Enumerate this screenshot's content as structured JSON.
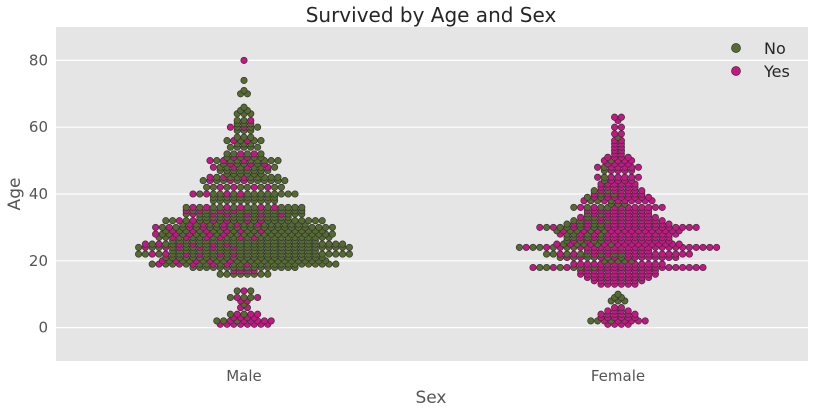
{
  "chart_data": {
    "type": "scatter",
    "subtype": "swarm",
    "title": "Survived by Age and Sex",
    "xlabel": "Sex",
    "ylabel": "Age",
    "categories": [
      "Male",
      "Female"
    ],
    "ylim": [
      -10,
      90
    ],
    "yticks": [
      0,
      20,
      40,
      60,
      80
    ],
    "grid": true,
    "legend_placement": "top-right",
    "colors": {
      "No": "#556b2f",
      "Yes": "#c71585",
      "background": "#e5e5e5",
      "grid": "#ffffff"
    },
    "series": [
      {
        "name": "No",
        "color": "#556b2f",
        "bins": {
          "Male": [
            [
              2,
              3
            ],
            [
              4,
              2
            ],
            [
              7,
              1
            ],
            [
              9,
              3
            ],
            [
              11,
              2
            ],
            [
              16,
              8
            ],
            [
              18,
              16
            ],
            [
              19,
              22
            ],
            [
              20,
              20
            ],
            [
              21,
              24
            ],
            [
              22,
              26
            ],
            [
              23,
              22
            ],
            [
              24,
              26
            ],
            [
              25,
              24
            ],
            [
              26,
              22
            ],
            [
              27,
              20
            ],
            [
              28,
              22
            ],
            [
              29,
              18
            ],
            [
              30,
              22
            ],
            [
              31,
              14
            ],
            [
              32,
              18
            ],
            [
              33,
              14
            ],
            [
              34,
              12
            ],
            [
              35,
              14
            ],
            [
              36,
              12
            ],
            [
              38,
              10
            ],
            [
              39,
              10
            ],
            [
              40,
              12
            ],
            [
              42,
              8
            ],
            [
              44,
              10
            ],
            [
              45,
              8
            ],
            [
              46,
              6
            ],
            [
              47,
              8
            ],
            [
              48,
              6
            ],
            [
              49,
              4
            ],
            [
              50,
              8
            ],
            [
              51,
              4
            ],
            [
              52,
              4
            ],
            [
              54,
              5
            ],
            [
              55,
              3
            ],
            [
              56,
              4
            ],
            [
              57,
              3
            ],
            [
              59,
              3
            ],
            [
              60,
              3
            ],
            [
              61,
              3
            ],
            [
              62,
              2
            ],
            [
              64,
              3
            ],
            [
              65,
              2
            ],
            [
              66,
              1
            ],
            [
              70,
              2
            ],
            [
              71,
              1
            ],
            [
              74,
              1
            ]
          ],
          "Female": [
            [
              2,
              3
            ],
            [
              8,
              3
            ],
            [
              9,
              2
            ],
            [
              10,
              1
            ],
            [
              18,
              6
            ],
            [
              20,
              5
            ],
            [
              21,
              6
            ],
            [
              22,
              8
            ],
            [
              24,
              6
            ],
            [
              25,
              5
            ],
            [
              26,
              4
            ],
            [
              27,
              4
            ],
            [
              28,
              4
            ],
            [
              29,
              5
            ],
            [
              30,
              6
            ],
            [
              31,
              4
            ],
            [
              32,
              4
            ],
            [
              33,
              2
            ],
            [
              34,
              2
            ],
            [
              36,
              4
            ],
            [
              37,
              3
            ],
            [
              38,
              3
            ],
            [
              39,
              2
            ],
            [
              40,
              2
            ],
            [
              41,
              2
            ],
            [
              44,
              1
            ],
            [
              45,
              1
            ],
            [
              47,
              1
            ],
            [
              48,
              1
            ],
            [
              50,
              1
            ],
            [
              57,
              1
            ]
          ]
        }
      },
      {
        "name": "Yes",
        "color": "#c71585",
        "bins": {
          "Male": [
            [
              1,
              8
            ],
            [
              2,
              6
            ],
            [
              3,
              4
            ],
            [
              4,
              3
            ],
            [
              6,
              2
            ],
            [
              8,
              2
            ],
            [
              9,
              2
            ],
            [
              11,
              1
            ],
            [
              17,
              4
            ],
            [
              19,
              6
            ],
            [
              20,
              5
            ],
            [
              22,
              6
            ],
            [
              24,
              6
            ],
            [
              25,
              6
            ],
            [
              27,
              6
            ],
            [
              28,
              5
            ],
            [
              29,
              6
            ],
            [
              30,
              5
            ],
            [
              31,
              5
            ],
            [
              32,
              6
            ],
            [
              34,
              6
            ],
            [
              35,
              4
            ],
            [
              36,
              6
            ],
            [
              40,
              4
            ],
            [
              42,
              4
            ],
            [
              44,
              3
            ],
            [
              45,
              3
            ],
            [
              48,
              4
            ],
            [
              49,
              3
            ],
            [
              50,
              3
            ],
            [
              51,
              2
            ],
            [
              52,
              2
            ],
            [
              56,
              2
            ],
            [
              60,
              2
            ],
            [
              62,
              1
            ],
            [
              80,
              1
            ]
          ],
          "Female": [
            [
              1,
              4
            ],
            [
              2,
              6
            ],
            [
              3,
              6
            ],
            [
              4,
              6
            ],
            [
              5,
              4
            ],
            [
              6,
              2
            ],
            [
              13,
              6
            ],
            [
              14,
              8
            ],
            [
              15,
              10
            ],
            [
              16,
              12
            ],
            [
              17,
              12
            ],
            [
              18,
              20
            ],
            [
              19,
              14
            ],
            [
              21,
              12
            ],
            [
              22,
              14
            ],
            [
              23,
              10
            ],
            [
              24,
              24
            ],
            [
              25,
              14
            ],
            [
              26,
              12
            ],
            [
              27,
              12
            ],
            [
              28,
              14
            ],
            [
              29,
              14
            ],
            [
              30,
              18
            ],
            [
              31,
              12
            ],
            [
              32,
              10
            ],
            [
              33,
              10
            ],
            [
              34,
              8
            ],
            [
              35,
              10
            ],
            [
              36,
              10
            ],
            [
              38,
              8
            ],
            [
              39,
              8
            ],
            [
              40,
              6
            ],
            [
              41,
              6
            ],
            [
              42,
              6
            ],
            [
              43,
              6
            ],
            [
              44,
              4
            ],
            [
              45,
              6
            ],
            [
              47,
              4
            ],
            [
              48,
              6
            ],
            [
              49,
              4
            ],
            [
              50,
              4
            ],
            [
              51,
              4
            ],
            [
              52,
              2
            ],
            [
              53,
              2
            ],
            [
              54,
              2
            ],
            [
              55,
              2
            ],
            [
              56,
              2
            ],
            [
              58,
              2
            ],
            [
              60,
              2
            ],
            [
              62,
              1
            ],
            [
              63,
              2
            ]
          ]
        }
      }
    ]
  }
}
